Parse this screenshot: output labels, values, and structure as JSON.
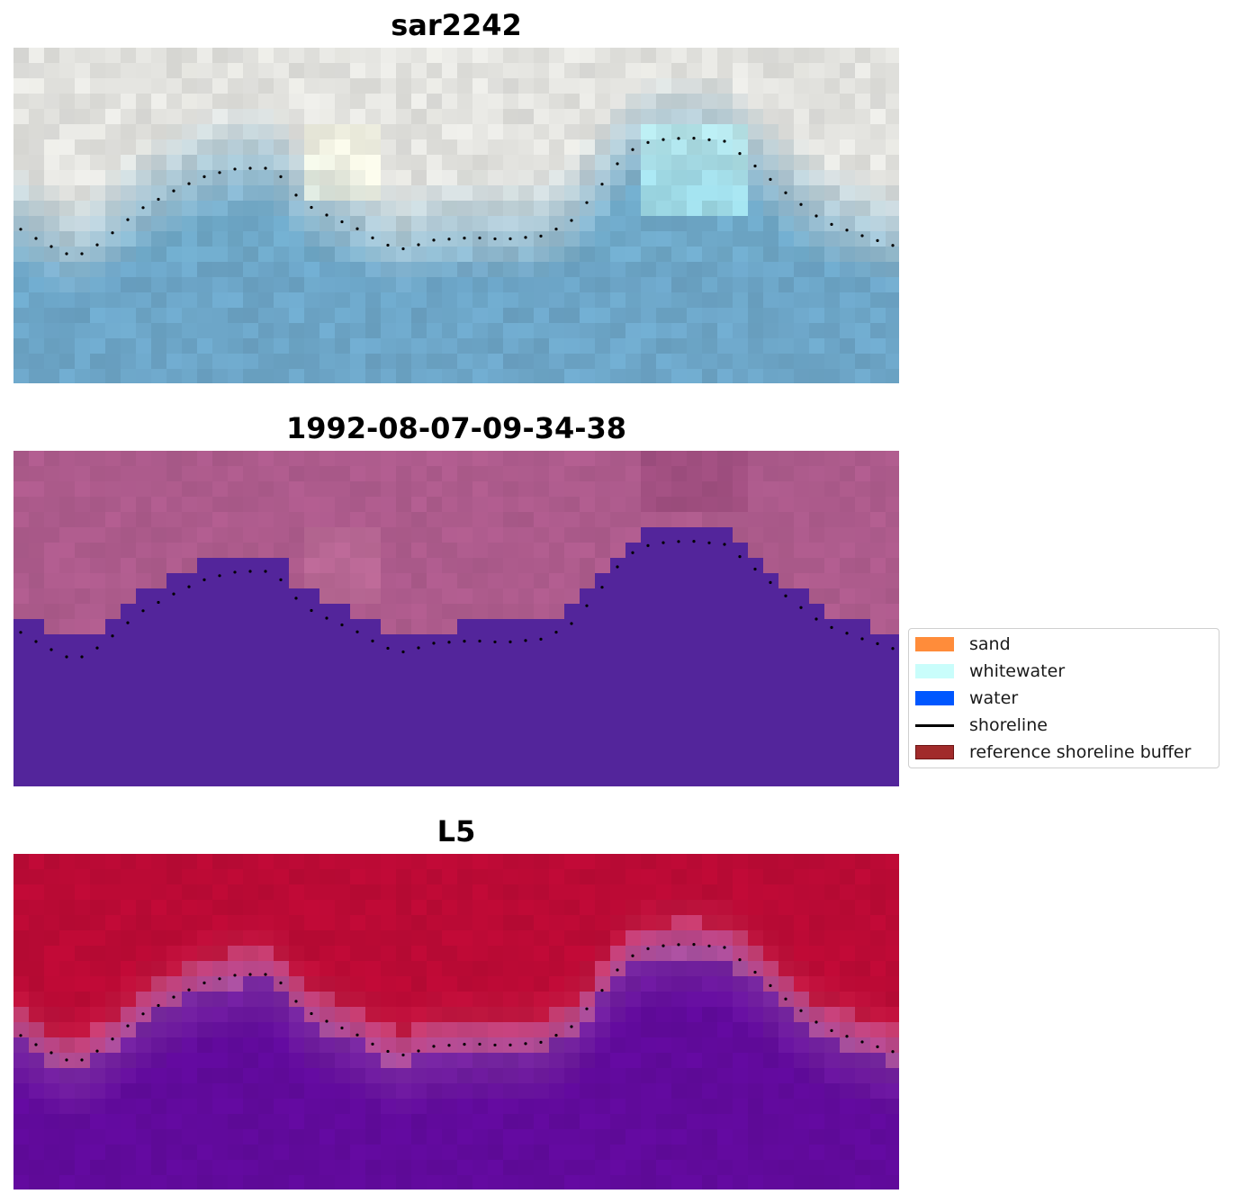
{
  "panels": [
    {
      "title": "sar2242",
      "kind": "rgb-image"
    },
    {
      "title": "1992-08-07-09-34-38",
      "kind": "classification"
    },
    {
      "title": "L5",
      "kind": "probability"
    }
  ],
  "legend": {
    "items": [
      {
        "label": "sand",
        "type": "patch",
        "color": "#ff8c3a"
      },
      {
        "label": "whitewater",
        "type": "patch",
        "color": "#c9fdfb"
      },
      {
        "label": "water",
        "type": "patch",
        "color": "#0057ff"
      },
      {
        "label": "shoreline",
        "type": "line",
        "color": "#000000"
      },
      {
        "label": "reference shoreline buffer",
        "type": "patch",
        "color": "#a12b2b"
      }
    ]
  },
  "colors": {
    "land_pink": "#ad5b8c",
    "water_purple": "#53259b",
    "land_red": "#bb0a35",
    "water_violet": "#610a9c",
    "sky_sand": "#e3e3df",
    "sea_blue": "#6fa9c9"
  }
}
